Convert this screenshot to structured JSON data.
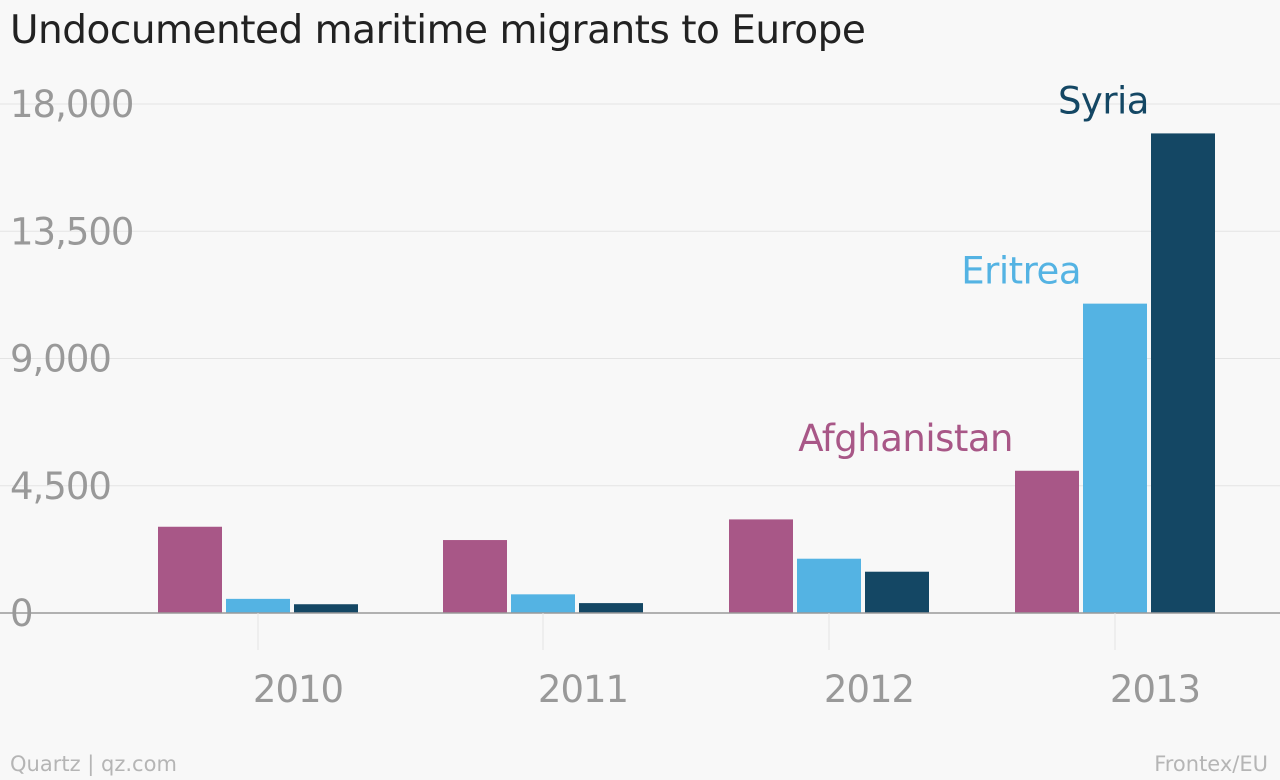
{
  "title": "Undocumented maritime migrants to Europe",
  "footer": {
    "credit": "Quartz | qz.com",
    "source": "Frontex/EU"
  },
  "colors": {
    "background": "#f8f8f8",
    "grid": "#e4e4e4",
    "axis": "#999999",
    "tick_text": "#999999"
  },
  "chart_data": {
    "type": "bar",
    "categories": [
      "2010",
      "2011",
      "2012",
      "2013"
    ],
    "series": [
      {
        "name": "Afghanistan",
        "color": "#a85787",
        "values": [
          3050,
          2580,
          3310,
          5030
        ]
      },
      {
        "name": "Eritrea",
        "color": "#54b3e3",
        "values": [
          500,
          660,
          1920,
          10940
        ]
      },
      {
        "name": "Syria",
        "color": "#144764",
        "values": [
          310,
          350,
          1460,
          16960
        ]
      }
    ],
    "y_ticks": [
      0,
      4500,
      9000,
      13500,
      18000
    ],
    "y_tick_labels": [
      "0",
      "4,500",
      "9,000",
      "13,500",
      "18,000"
    ],
    "ylim": [
      0,
      18000
    ],
    "grid": true,
    "legend": "direct labels above 2013 bars"
  }
}
